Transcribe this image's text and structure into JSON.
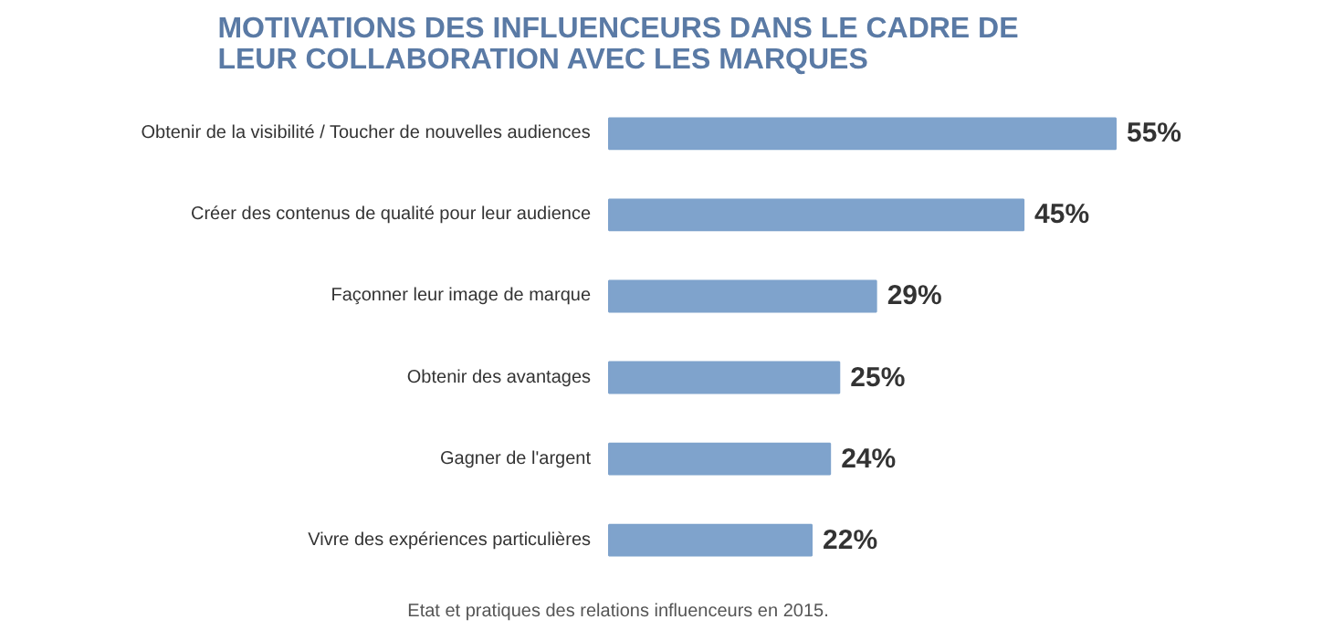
{
  "chart_data": {
    "type": "bar",
    "orientation": "horizontal",
    "title": "MOTIVATIONS DES INFLUENCEURS DANS LE CADRE DE LEUR COLLABORATION AVEC LES MARQUES",
    "categories": [
      "Obtenir de la visibilité / Toucher de nouvelles audiences",
      "Créer des contenus de qualité pour leur audience",
      "Façonner leur image de marque",
      "Obtenir des avantages",
      "Gagner de l'argent",
      "Vivre des expériences particulières"
    ],
    "values": [
      55,
      45,
      29,
      25,
      24,
      22
    ],
    "value_labels": [
      "55%",
      "45%",
      "29%",
      "25%",
      "24%",
      "22%"
    ],
    "color": "#7fa3cc",
    "grid": false,
    "annotations": [
      "Etat et pratiques des relations influenceurs en 2015."
    ]
  }
}
